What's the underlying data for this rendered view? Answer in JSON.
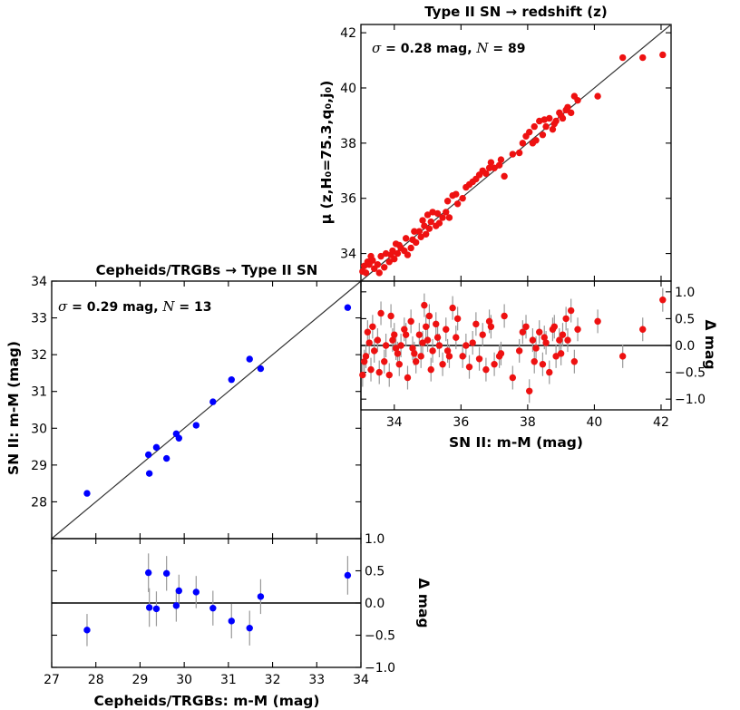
{
  "chart_data": [
    {
      "id": "cepheids",
      "type": "scatter",
      "title": "Cepheids/TRGBs → Type II SN",
      "xlabel": "Cepheids/TRGBs: m-M (mag)",
      "ylabel": "SN II: m-M (mag)",
      "resid_label": "Δ mag",
      "annotation": {
        "sigma_sym": "σ",
        "sigma_text": " = 0.29 mag, ",
        "n_sym": "N",
        "n_text": " = 13"
      },
      "xlim": [
        27,
        34
      ],
      "ylim": [
        27,
        34
      ],
      "resid_ylim": [
        -1.0,
        1.0
      ],
      "xticks": [
        27,
        28,
        29,
        30,
        31,
        32,
        33,
        34
      ],
      "xtick_labels": [
        "27",
        "28",
        "29",
        "30",
        "31",
        "32",
        "33",
        "34"
      ],
      "yticks": [
        28,
        29,
        30,
        31,
        32,
        33,
        34
      ],
      "ytick_labels": [
        "28",
        "29",
        "30",
        "31",
        "32",
        "33",
        "34"
      ],
      "resid_yticks": [
        1.0,
        0.5,
        0.0,
        -0.5,
        -1.0
      ],
      "resid_ytick_labels": [
        "1.0",
        "0.5",
        "0.0",
        "−0.5",
        "−1.0"
      ],
      "color": "#0000ff",
      "points": [
        {
          "x": 27.8,
          "y": 28.23,
          "r": -0.42,
          "err": 0.25
        },
        {
          "x": 29.19,
          "y": 29.28,
          "r": 0.47,
          "err": 0.3
        },
        {
          "x": 29.21,
          "y": 28.77,
          "r": -0.07,
          "err": 0.3
        },
        {
          "x": 29.37,
          "y": 29.48,
          "r": -0.09,
          "err": 0.27
        },
        {
          "x": 29.6,
          "y": 29.18,
          "r": 0.46,
          "err": 0.27
        },
        {
          "x": 29.82,
          "y": 29.85,
          "r": -0.04,
          "err": 0.25
        },
        {
          "x": 29.88,
          "y": 29.73,
          "r": 0.19,
          "err": 0.25
        },
        {
          "x": 30.27,
          "y": 30.08,
          "r": 0.17,
          "err": 0.25
        },
        {
          "x": 30.65,
          "y": 30.72,
          "r": -0.08,
          "err": 0.27
        },
        {
          "x": 31.07,
          "y": 31.32,
          "r": -0.28,
          "err": 0.27
        },
        {
          "x": 31.48,
          "y": 31.88,
          "r": -0.39,
          "err": 0.27
        },
        {
          "x": 31.73,
          "y": 31.62,
          "r": 0.1,
          "err": 0.27
        },
        {
          "x": 33.7,
          "y": 33.28,
          "r": 0.43,
          "err": 0.3
        }
      ]
    },
    {
      "id": "redshift",
      "type": "scatter",
      "title": "Type II SN → redshift (z)",
      "xlabel": "SN II: m-M (mag)",
      "ylabel": "μ (z,H₀=75.3,q₀,j₀)",
      "resid_label": "Δ mag",
      "annotation": {
        "sigma_sym": "σ",
        "sigma_text": " = 0.28 mag, ",
        "n_sym": "N",
        "n_text": " = 89"
      },
      "xlim": [
        33,
        42.3
      ],
      "ylim": [
        33,
        42.3
      ],
      "resid_ylim": [
        -1.2,
        1.2
      ],
      "xticks": [
        34,
        36,
        38,
        40,
        42
      ],
      "xtick_labels": [
        "34",
        "36",
        "38",
        "40",
        "42"
      ],
      "yticks": [
        34,
        36,
        38,
        40,
        42
      ],
      "ytick_labels": [
        "34",
        "36",
        "38",
        "40",
        "42"
      ],
      "resid_yticks": [
        1.0,
        0.5,
        0.0,
        -0.5,
        -1.0
      ],
      "resid_ytick_labels": [
        "1.0",
        "0.5",
        "0.0",
        "−0.5",
        "−1.0"
      ],
      "color": "#ee1111",
      "points": [
        {
          "x": 33.05,
          "y": 33.35,
          "r": -0.55
        },
        {
          "x": 33.1,
          "y": 33.55,
          "r": -0.3
        },
        {
          "x": 33.2,
          "y": 33.7,
          "r": 0.25
        },
        {
          "x": 33.3,
          "y": 33.9,
          "r": -0.45
        },
        {
          "x": 33.4,
          "y": 33.45,
          "r": -0.1
        },
        {
          "x": 33.5,
          "y": 33.6,
          "r": 0.1
        },
        {
          "x": 33.6,
          "y": 33.9,
          "r": 0.6
        },
        {
          "x": 33.7,
          "y": 33.5,
          "r": -0.3
        },
        {
          "x": 33.75,
          "y": 34.0,
          "r": 0.0
        },
        {
          "x": 33.85,
          "y": 33.7,
          "r": -0.55
        },
        {
          "x": 33.9,
          "y": 33.95,
          "r": 0.55
        },
        {
          "x": 34.0,
          "y": 33.8,
          "r": 0.2
        },
        {
          "x": 34.1,
          "y": 34.0,
          "r": -0.15
        },
        {
          "x": 34.2,
          "y": 34.2,
          "r": 0.0
        },
        {
          "x": 34.3,
          "y": 34.1,
          "r": 0.3
        },
        {
          "x": 34.4,
          "y": 33.95,
          "r": -0.6
        },
        {
          "x": 34.5,
          "y": 34.2,
          "r": 0.45
        },
        {
          "x": 34.55,
          "y": 34.5,
          "r": -0.05
        },
        {
          "x": 34.65,
          "y": 34.4,
          "r": -0.3
        },
        {
          "x": 34.75,
          "y": 34.8,
          "r": 0.2
        },
        {
          "x": 34.8,
          "y": 34.6,
          "r": -0.2
        },
        {
          "x": 34.9,
          "y": 35.0,
          "r": 0.75
        },
        {
          "x": 35.0,
          "y": 35.4,
          "r": 0.1
        },
        {
          "x": 35.05,
          "y": 34.9,
          "r": 0.55
        },
        {
          "x": 35.15,
          "y": 35.5,
          "r": -0.1
        },
        {
          "x": 35.25,
          "y": 35.0,
          "r": 0.4
        },
        {
          "x": 35.35,
          "y": 35.1,
          "r": 0.0
        },
        {
          "x": 35.45,
          "y": 35.3,
          "r": -0.35
        },
        {
          "x": 35.55,
          "y": 35.5,
          "r": 0.3
        },
        {
          "x": 35.65,
          "y": 35.3,
          "r": -0.2
        },
        {
          "x": 35.75,
          "y": 36.1,
          "r": 0.7
        },
        {
          "x": 35.85,
          "y": 36.15,
          "r": 0.15
        },
        {
          "x": 35.9,
          "y": 35.8,
          "r": 0.5
        },
        {
          "x": 36.05,
          "y": 36.0,
          "r": -0.2
        },
        {
          "x": 36.25,
          "y": 36.5,
          "r": -0.4
        },
        {
          "x": 36.45,
          "y": 36.7,
          "r": 0.4
        },
        {
          "x": 36.65,
          "y": 37.0,
          "r": 0.2
        },
        {
          "x": 36.75,
          "y": 36.9,
          "r": -0.45
        },
        {
          "x": 36.9,
          "y": 37.3,
          "r": 0.35
        },
        {
          "x": 37.0,
          "y": 37.1,
          "r": -0.35
        },
        {
          "x": 37.15,
          "y": 37.2,
          "r": -0.2
        },
        {
          "x": 37.3,
          "y": 36.8,
          "r": 0.55
        },
        {
          "x": 37.55,
          "y": 37.6,
          "r": -0.6
        },
        {
          "x": 37.75,
          "y": 37.65,
          "r": -0.1
        },
        {
          "x": 37.95,
          "y": 38.25,
          "r": 0.35
        },
        {
          "x": 38.05,
          "y": 38.4,
          "r": -0.85
        },
        {
          "x": 38.15,
          "y": 38.0,
          "r": 0.1
        },
        {
          "x": 38.25,
          "y": 38.1,
          "r": -0.05
        },
        {
          "x": 38.35,
          "y": 38.8,
          "r": 0.25
        },
        {
          "x": 38.45,
          "y": 38.3,
          "r": -0.35
        },
        {
          "x": 38.55,
          "y": 38.6,
          "r": 0.05
        },
        {
          "x": 38.65,
          "y": 38.9,
          "r": -0.5
        },
        {
          "x": 38.75,
          "y": 38.5,
          "r": 0.3
        },
        {
          "x": 38.85,
          "y": 38.8,
          "r": -0.2
        },
        {
          "x": 38.95,
          "y": 39.1,
          "r": 0.1
        },
        {
          "x": 39.05,
          "y": 38.9,
          "r": 0.2
        },
        {
          "x": 39.15,
          "y": 39.2,
          "r": 0.5
        },
        {
          "x": 39.3,
          "y": 39.1,
          "r": 0.65
        },
        {
          "x": 39.4,
          "y": 39.7,
          "r": -0.3
        },
        {
          "x": 40.1,
          "y": 39.7,
          "r": 0.45
        },
        {
          "x": 40.85,
          "y": 41.1,
          "r": -0.2
        },
        {
          "x": 41.45,
          "y": 41.1,
          "r": 0.3
        },
        {
          "x": 42.05,
          "y": 41.2,
          "r": 0.85
        },
        {
          "x": 33.15,
          "y": 33.3,
          "r": -0.2
        },
        {
          "x": 33.35,
          "y": 33.75,
          "r": 0.35
        },
        {
          "x": 33.55,
          "y": 33.3,
          "r": -0.5
        },
        {
          "x": 33.95,
          "y": 34.1,
          "r": 0.1
        },
        {
          "x": 34.15,
          "y": 34.3,
          "r": -0.35
        },
        {
          "x": 34.35,
          "y": 34.55,
          "r": 0.2
        },
        {
          "x": 34.6,
          "y": 34.8,
          "r": -0.15
        },
        {
          "x": 34.85,
          "y": 35.2,
          "r": 0.05
        },
        {
          "x": 35.1,
          "y": 35.15,
          "r": -0.45
        },
        {
          "x": 35.3,
          "y": 35.45,
          "r": 0.15
        },
        {
          "x": 35.6,
          "y": 35.9,
          "r": -0.1
        },
        {
          "x": 36.15,
          "y": 36.4,
          "r": 0.0
        },
        {
          "x": 36.55,
          "y": 36.85,
          "r": -0.25
        },
        {
          "x": 36.85,
          "y": 37.1,
          "r": 0.45
        },
        {
          "x": 37.2,
          "y": 37.4,
          "r": -0.15
        },
        {
          "x": 37.85,
          "y": 38.0,
          "r": 0.25
        },
        {
          "x": 38.2,
          "y": 38.6,
          "r": -0.3
        },
        {
          "x": 38.5,
          "y": 38.85,
          "r": 0.15
        },
        {
          "x": 38.8,
          "y": 38.7,
          "r": 0.35
        },
        {
          "x": 39.0,
          "y": 39.0,
          "r": -0.15
        },
        {
          "x": 39.2,
          "y": 39.3,
          "r": 0.1
        },
        {
          "x": 39.5,
          "y": 39.55,
          "r": 0.3
        },
        {
          "x": 33.25,
          "y": 33.6,
          "r": 0.05
        },
        {
          "x": 34.05,
          "y": 34.35,
          "r": -0.05
        },
        {
          "x": 34.95,
          "y": 34.7,
          "r": 0.35
        },
        {
          "x": 36.35,
          "y": 36.6,
          "r": 0.05
        }
      ]
    }
  ]
}
